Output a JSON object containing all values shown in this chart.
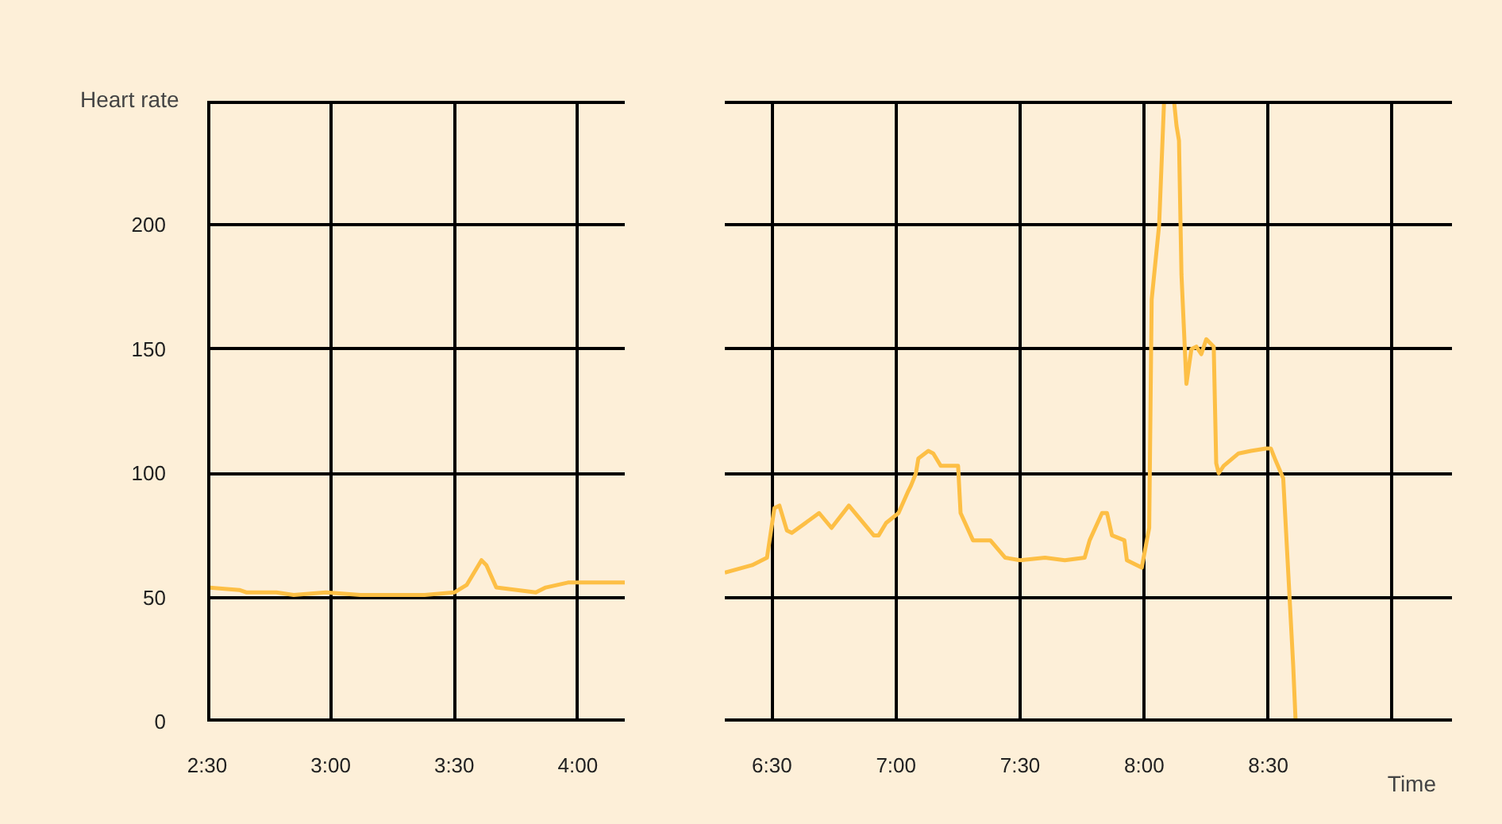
{
  "chart_data": [
    {
      "type": "line",
      "ylabel": "Heart rate",
      "grid": true,
      "line_style": "solid",
      "x": [
        2.5,
        2.63,
        2.66,
        2.78,
        2.85,
        2.98,
        3.12,
        3.38,
        3.5,
        3.55,
        3.61,
        3.63,
        3.67,
        3.83,
        3.87,
        3.96,
        4.19
      ],
      "series": [
        {
          "color": "#fdbf45",
          "values": [
            54,
            53,
            52,
            52,
            51,
            52,
            51,
            51,
            52,
            55,
            65,
            63,
            54,
            52,
            54,
            56,
            56
          ]
        }
      ],
      "xlim": [
        2.5,
        4.19
      ],
      "xticks": [
        {
          "value": 2.5,
          "label": "2:30"
        },
        {
          "value": 3,
          "label": "3:00"
        },
        {
          "value": 3.5,
          "label": "3:30"
        },
        {
          "value": 4,
          "label": "4:00"
        }
      ],
      "ylim": [
        0,
        250
      ],
      "yticks": [
        0,
        50,
        100,
        150,
        200,
        {
          "value": 250,
          "label": null
        }
      ]
    },
    {
      "type": "line",
      "xlabel": "Time",
      "grid": true,
      "line_style": "solid",
      "tick_labels": "x",
      "x": [
        6.31,
        6.42,
        6.48,
        6.51,
        6.53,
        6.56,
        6.58,
        6.69,
        6.74,
        6.81,
        6.91,
        6.93,
        6.96,
        7.01,
        7.05,
        7.06,
        7.08,
        7.09,
        7.13,
        7.15,
        7.18,
        7.25,
        7.26,
        7.31,
        7.38,
        7.44,
        7.5,
        7.6,
        7.68,
        7.76,
        7.78,
        7.83,
        7.85,
        7.87,
        7.92,
        7.93,
        7.99,
        8.02,
        8.03,
        8.06,
        8.08,
        8.12,
        8.13,
        8.14,
        8.15,
        8.17,
        8.19,
        8.21,
        8.23,
        8.25,
        8.28,
        8.29,
        8.3,
        8.32,
        8.38,
        8.43,
        8.49,
        8.51,
        8.53,
        8.56,
        8.6,
        8.61
      ],
      "series": [
        {
          "color": "#fdbf45",
          "values": [
            60,
            63,
            66,
            86,
            87,
            77,
            76,
            84,
            78,
            87,
            75,
            75,
            80,
            84,
            93,
            95,
            100,
            106,
            109,
            108,
            103,
            103,
            84,
            73,
            73,
            66,
            65,
            66,
            65,
            66,
            73,
            84,
            84,
            75,
            73,
            65,
            62,
            78,
            170,
            200,
            250,
            250,
            240,
            234,
            180,
            136,
            150,
            151,
            148,
            154,
            151,
            104,
            100,
            103,
            108,
            109,
            110,
            110,
            105,
            98,
            23,
            0
          ]
        }
      ],
      "xlim": [
        6.31,
        9.24
      ],
      "xticks": [
        {
          "value": 6.5,
          "label": "6:30"
        },
        {
          "value": 7,
          "label": "7:00"
        },
        {
          "value": 7.5,
          "label": "7:30"
        },
        {
          "value": 8,
          "label": "8:00"
        },
        {
          "value": 8.5,
          "label": "8:30"
        },
        {
          "value": 9,
          "label": null
        }
      ],
      "ylim": [
        0,
        250
      ],
      "yticks": [
        0,
        50,
        100,
        150,
        200,
        {
          "value": 250,
          "label": null
        }
      ]
    }
  ]
}
